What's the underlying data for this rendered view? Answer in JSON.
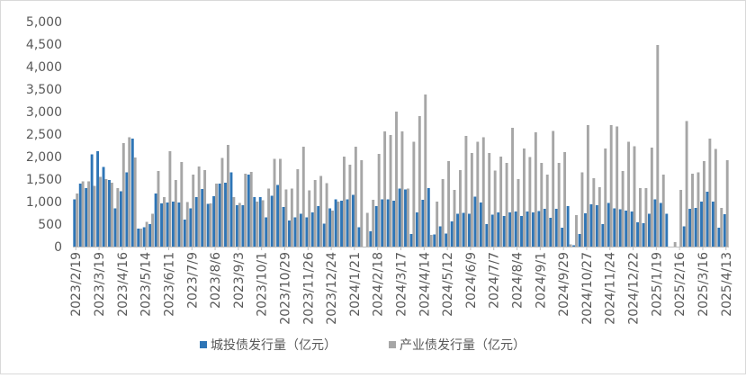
{
  "chart_data": {
    "type": "bar",
    "y_ticks": [
      "0",
      "500",
      "1,000",
      "1,500",
      "2,000",
      "2,500",
      "3,000",
      "3,500",
      "4,000",
      "4,500",
      "5,000"
    ],
    "ylim": [
      0,
      5000
    ],
    "grid": false,
    "legend_position": "bottom",
    "x_tick_labels": [
      "2023/2/19",
      "2023/3/19",
      "2023/4/16",
      "2023/5/14",
      "2023/6/11",
      "2023/7/9",
      "2023/8/6",
      "2023/9/3",
      "2023/10/1",
      "2023/10/29",
      "2023/11/26",
      "2023/12/24",
      "2024/1/21",
      "2024/2/18",
      "2024/3/17",
      "2024/4/14",
      "2024/5/12",
      "2024/6/9",
      "2024/7/7",
      "2024/8/4",
      "2024/9/1",
      "2024/9/29",
      "2024/10/27",
      "2024/11/24",
      "2024/12/22",
      "2025/1/19",
      "2025/2/16",
      "2025/3/16",
      "2025/4/13"
    ],
    "categories": [
      "2023/2/19",
      "2023/2/26",
      "2023/3/5",
      "2023/3/12",
      "2023/3/19",
      "2023/3/26",
      "2023/4/2",
      "2023/4/9",
      "2023/4/16",
      "2023/4/23",
      "2023/4/30",
      "2023/5/7",
      "2023/5/14",
      "2023/5/21",
      "2023/5/28",
      "2023/6/4",
      "2023/6/11",
      "2023/6/18",
      "2023/6/25",
      "2023/7/2",
      "2023/7/9",
      "2023/7/16",
      "2023/7/23",
      "2023/7/30",
      "2023/8/6",
      "2023/8/13",
      "2023/8/20",
      "2023/8/27",
      "2023/9/3",
      "2023/9/10",
      "2023/9/17",
      "2023/9/24",
      "2023/10/1",
      "2023/10/8",
      "2023/10/15",
      "2023/10/22",
      "2023/10/29",
      "2023/11/5",
      "2023/11/12",
      "2023/11/19",
      "2023/11/26",
      "2023/12/3",
      "2023/12/10",
      "2023/12/17",
      "2023/12/24",
      "2023/12/31",
      "2024/1/7",
      "2024/1/14",
      "2024/1/21",
      "2024/1/28",
      "2024/2/4",
      "2024/2/11",
      "2024/2/18",
      "2024/2/25",
      "2024/3/3",
      "2024/3/10",
      "2024/3/17",
      "2024/3/24",
      "2024/3/31",
      "2024/4/7",
      "2024/4/14",
      "2024/4/21",
      "2024/4/28",
      "2024/5/5",
      "2024/5/12",
      "2024/5/19",
      "2024/5/26",
      "2024/6/2",
      "2024/6/9",
      "2024/6/16",
      "2024/6/23",
      "2024/6/30",
      "2024/7/7",
      "2024/7/14",
      "2024/7/21",
      "2024/7/28",
      "2024/8/4",
      "2024/8/11",
      "2024/8/18",
      "2024/8/25",
      "2024/9/1",
      "2024/9/8",
      "2024/9/15",
      "2024/9/22",
      "2024/9/29",
      "2024/10/6",
      "2024/10/13",
      "2024/10/20",
      "2024/10/27",
      "2024/11/3",
      "2024/11/10",
      "2024/11/17",
      "2024/11/24",
      "2024/12/1",
      "2024/12/8",
      "2024/12/15",
      "2024/12/22",
      "2024/12/29",
      "2025/1/5",
      "2025/1/12",
      "2025/1/19",
      "2025/1/26",
      "2025/2/2",
      "2025/2/9",
      "2025/2/16",
      "2025/2/23",
      "2025/3/2",
      "2025/3/9",
      "2025/3/16",
      "2025/3/23",
      "2025/3/30",
      "2025/4/6",
      "2025/4/13"
    ],
    "series": [
      {
        "name": "城投债发行量（亿元）",
        "color": "#2e75b6",
        "values": [
          1050,
          1400,
          1300,
          2050,
          2120,
          1770,
          1480,
          850,
          1230,
          1650,
          2400,
          400,
          430,
          500,
          1180,
          960,
          980,
          1000,
          980,
          600,
          850,
          1100,
          1280,
          950,
          1120,
          1400,
          1420,
          1650,
          920,
          920,
          1600,
          1100,
          1100,
          650,
          1130,
          1370,
          880,
          580,
          650,
          730,
          650,
          760,
          900,
          510,
          850,
          1050,
          1020,
          1050,
          1150,
          430,
          0,
          340,
          900,
          1050,
          1050,
          1020,
          1290,
          1270,
          280,
          760,
          1040,
          1300,
          270,
          450,
          290,
          560,
          730,
          750,
          730,
          1110,
          980,
          500,
          710,
          760,
          680,
          760,
          780,
          680,
          780,
          760,
          790,
          840,
          640,
          840,
          420,
          900,
          30,
          280,
          740,
          940,
          920,
          500,
          970,
          850,
          830,
          800,
          780,
          540,
          520,
          730,
          1050,
          970,
          730,
          0,
          0,
          450,
          840,
          860,
          1000,
          1220,
          1000,
          420,
          720
        ]
      },
      {
        "name": "产业债发行量（亿元）",
        "color": "#a6a6a6",
        "values": [
          1180,
          1450,
          1450,
          1350,
          1550,
          1500,
          1420,
          1300,
          2300,
          2430,
          1980,
          400,
          550,
          730,
          1680,
          1100,
          2120,
          1480,
          1880,
          990,
          1600,
          1780,
          1700,
          960,
          1400,
          1970,
          2260,
          1100,
          970,
          1620,
          1660,
          1000,
          1030,
          1290,
          1950,
          1950,
          1270,
          1290,
          1720,
          2220,
          1250,
          1480,
          1570,
          1410,
          800,
          1000,
          2000,
          1820,
          2220,
          1920,
          750,
          1040,
          2060,
          2560,
          2480,
          3000,
          2560,
          1290,
          2330,
          2900,
          3380,
          260,
          1000,
          1500,
          1900,
          1260,
          1700,
          2460,
          2080,
          2330,
          2430,
          2080,
          1690,
          2000,
          1860,
          2640,
          1500,
          2180,
          1990,
          2540,
          1860,
          1600,
          2570,
          1860,
          2100,
          50,
          700,
          1650,
          2700,
          1520,
          1320,
          2180,
          2700,
          2670,
          1680,
          2330,
          2230,
          1300,
          1300,
          2200,
          4480,
          1600,
          0,
          100,
          1260,
          2790,
          1620,
          1650,
          1900,
          2400,
          2170,
          860,
          1920
        ]
      }
    ]
  }
}
